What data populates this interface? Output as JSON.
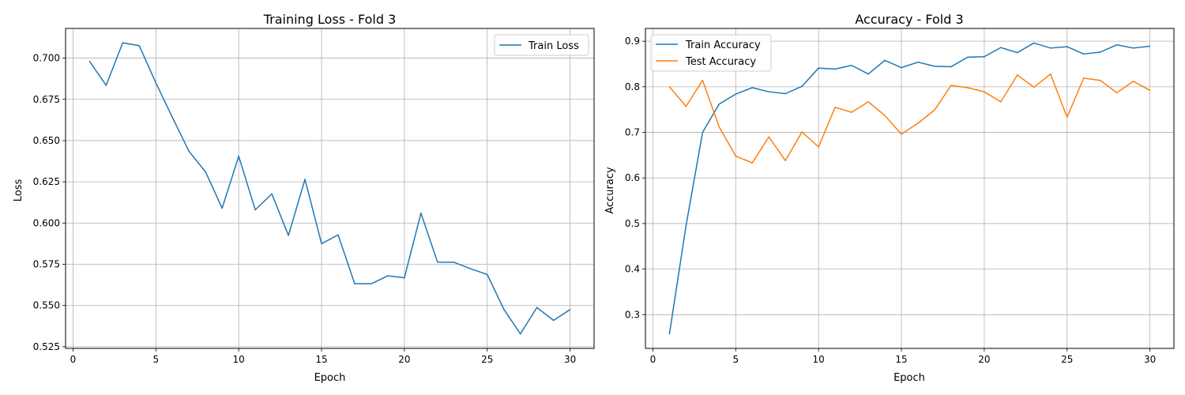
{
  "chart_data": [
    {
      "type": "line",
      "title": "Training Loss - Fold 3",
      "xlabel": "Epoch",
      "ylabel": "Loss",
      "xlim": [
        -0.45,
        31.45
      ],
      "ylim": [
        0.524,
        0.718
      ],
      "xticks": [
        0,
        5,
        10,
        15,
        20,
        25,
        30
      ],
      "xtick_labels": [
        "0",
        "5",
        "10",
        "15",
        "20",
        "25",
        "30"
      ],
      "yticks": [
        0.525,
        0.55,
        0.575,
        0.6,
        0.625,
        0.65,
        0.675,
        0.7
      ],
      "ytick_labels": [
        "0.525",
        "0.550",
        "0.575",
        "0.600",
        "0.625",
        "0.650",
        "0.675",
        "0.700"
      ],
      "grid": true,
      "legend": "upper right",
      "x": [
        1,
        2,
        3,
        4,
        5,
        6,
        7,
        8,
        9,
        10,
        11,
        12,
        13,
        14,
        15,
        16,
        17,
        18,
        19,
        20,
        21,
        22,
        23,
        24,
        25,
        26,
        27,
        28,
        29,
        30
      ],
      "series": [
        {
          "name": "Train Loss",
          "color": "#1f77b4",
          "values": [
            0.698,
            0.6835,
            0.7093,
            0.7075,
            0.685,
            0.664,
            0.6435,
            0.631,
            0.609,
            0.6405,
            0.608,
            0.6177,
            0.5925,
            0.6265,
            0.5875,
            0.5928,
            0.5632,
            0.5632,
            0.568,
            0.5668,
            0.606,
            0.5763,
            0.5762,
            0.5723,
            0.5688,
            0.5478,
            0.5328,
            0.5488,
            0.541,
            0.5475
          ]
        }
      ]
    },
    {
      "type": "line",
      "title": "Accuracy - Fold 3",
      "xlabel": "Epoch",
      "ylabel": "Accuracy",
      "xlim": [
        -0.45,
        31.45
      ],
      "ylim": [
        0.226,
        0.928
      ],
      "xticks": [
        0,
        5,
        10,
        15,
        20,
        25,
        30
      ],
      "xtick_labels": [
        "0",
        "5",
        "10",
        "15",
        "20",
        "25",
        "30"
      ],
      "yticks": [
        0.3,
        0.4,
        0.5,
        0.6,
        0.7,
        0.8,
        0.9
      ],
      "ytick_labels": [
        "0.3",
        "0.4",
        "0.5",
        "0.6",
        "0.7",
        "0.8",
        "0.9"
      ],
      "grid": true,
      "legend": "upper left",
      "x": [
        1,
        2,
        3,
        4,
        5,
        6,
        7,
        8,
        9,
        10,
        11,
        12,
        13,
        14,
        15,
        16,
        17,
        18,
        19,
        20,
        21,
        22,
        23,
        24,
        25,
        26,
        27,
        28,
        29,
        30
      ],
      "series": [
        {
          "name": "Train Accuracy",
          "color": "#1f77b4",
          "values": [
            0.258,
            0.495,
            0.7,
            0.762,
            0.784,
            0.798,
            0.789,
            0.785,
            0.801,
            0.841,
            0.839,
            0.847,
            0.828,
            0.858,
            0.842,
            0.854,
            0.845,
            0.844,
            0.865,
            0.866,
            0.886,
            0.875,
            0.896,
            0.885,
            0.888,
            0.872,
            0.876,
            0.892,
            0.885,
            0.889
          ]
        },
        {
          "name": "Test Accuracy",
          "color": "#ff7f0e",
          "values": [
            0.8,
            0.757,
            0.814,
            0.712,
            0.648,
            0.633,
            0.69,
            0.638,
            0.701,
            0.668,
            0.755,
            0.744,
            0.767,
            0.737,
            0.696,
            0.72,
            0.749,
            0.803,
            0.798,
            0.789,
            0.767,
            0.826,
            0.799,
            0.828,
            0.733,
            0.819,
            0.814,
            0.787,
            0.812,
            0.792
          ]
        }
      ]
    }
  ]
}
